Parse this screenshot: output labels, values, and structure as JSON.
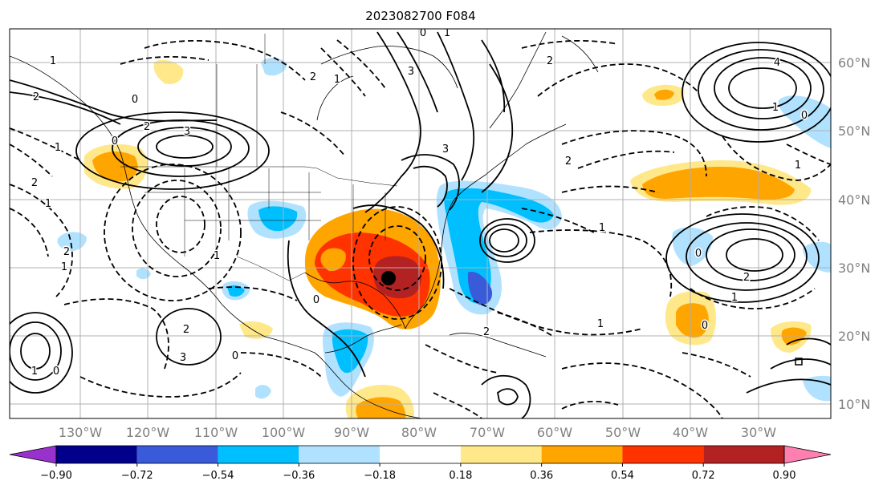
{
  "title": "2023082700 F084",
  "lat_labels": [
    "60°N",
    "50°N",
    "40°N",
    "30°N",
    "20°N",
    "10°N"
  ],
  "lon_labels": [
    "130°W",
    "120°W",
    "110°W",
    "100°W",
    "90°W",
    "80°W",
    "70°W",
    "60°W",
    "50°W",
    "40°W",
    "30°W"
  ],
  "colorbar": {
    "ticks": [
      "−0.90",
      "−0.72",
      "−0.54",
      "−0.36",
      "−0.18",
      "0.18",
      "0.36",
      "0.54",
      "0.72",
      "0.90"
    ],
    "colors": [
      "#9932cc",
      "#00008b",
      "#3a5bd9",
      "#00bfff",
      "#b0e2ff",
      "#ffffff",
      "#ffe88a",
      "#ffa500",
      "#ff3300",
      "#b22222",
      "#ff80b0"
    ]
  },
  "marker": "storm-center",
  "contour_labels": [
    "1",
    "2",
    "0",
    "3",
    "4",
    "1",
    "2",
    "3",
    "2",
    "0",
    "2",
    "1",
    "0",
    "1",
    "2",
    "1",
    "0",
    "3",
    "2",
    "1",
    "0",
    "1",
    "2",
    "1",
    "0",
    "2",
    "1",
    "0",
    "1",
    "2",
    "3",
    "2",
    "1",
    "0",
    "1",
    "0",
    "1"
  ],
  "colors": {
    "grid": "#b0b0b0",
    "axis_text": "#808080",
    "contour": "#000000"
  }
}
